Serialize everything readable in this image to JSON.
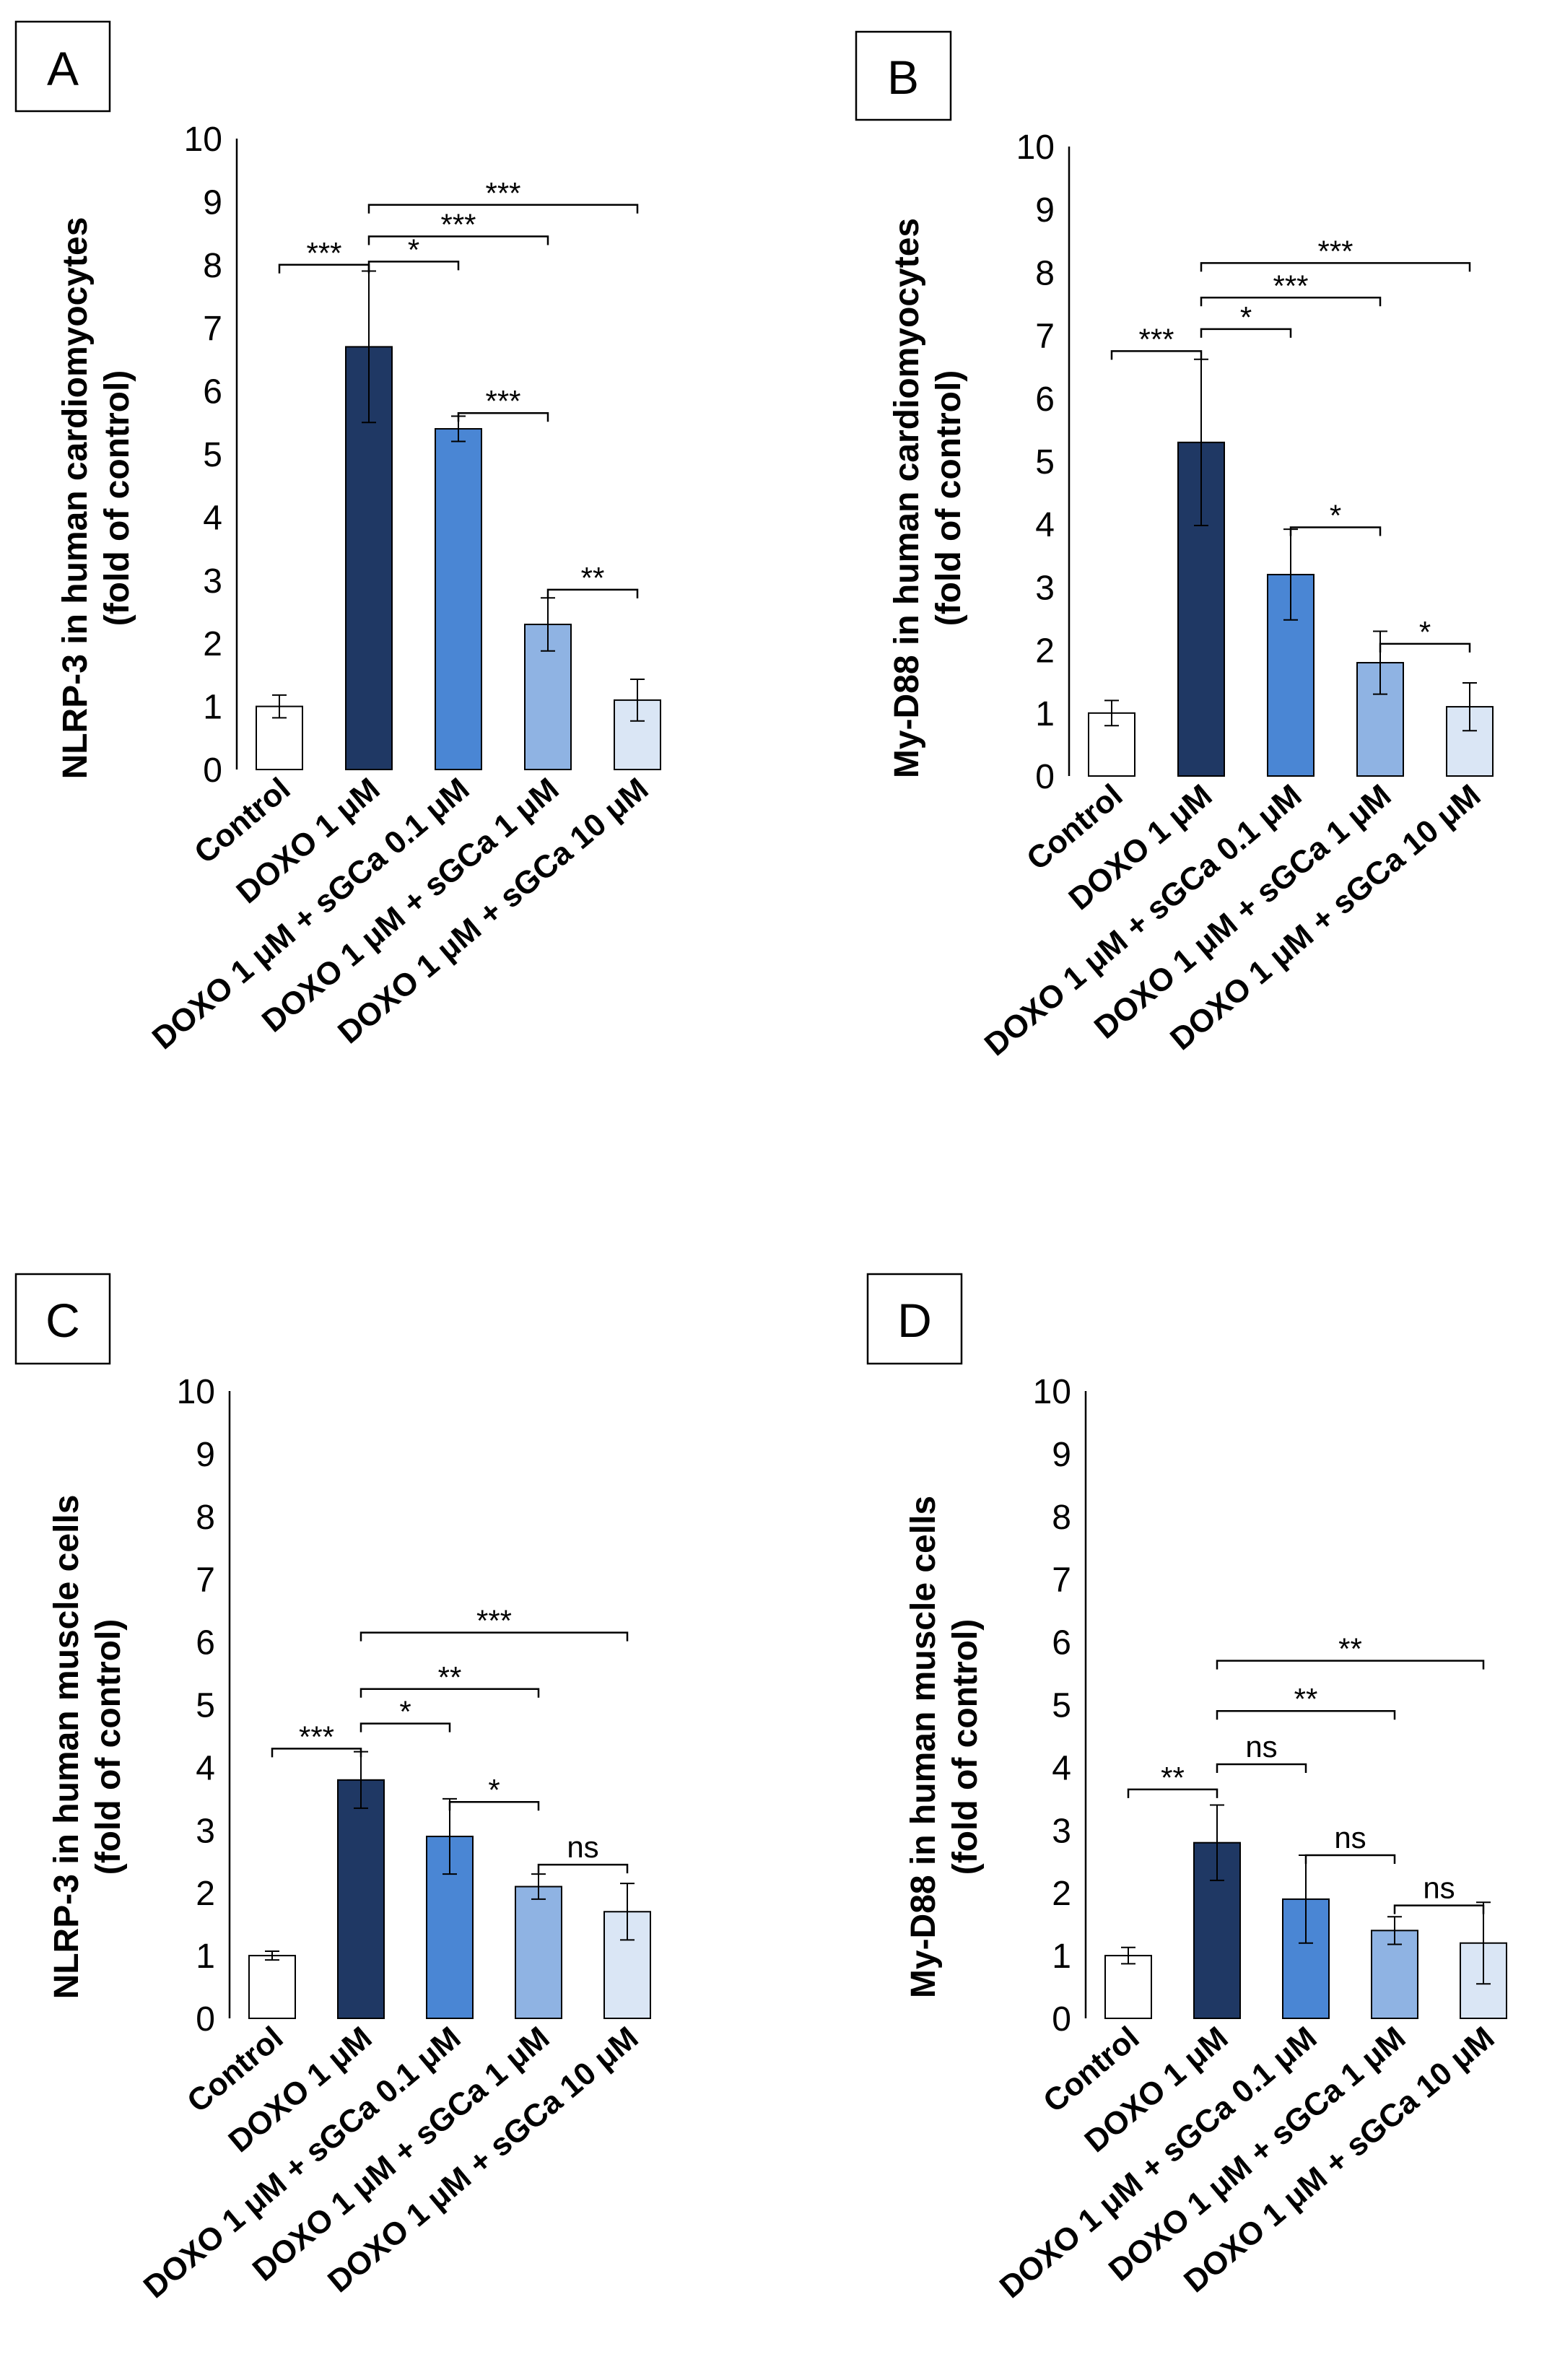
{
  "chart_data": [
    {
      "type": "bar",
      "panel": "A",
      "ylabel_line1": "NLRP-3 in human cardiomyocytes",
      "ylabel_line2": "(fold of control)",
      "ylim": [
        0,
        10
      ],
      "yticks": [
        "0",
        "1",
        "2",
        "3",
        "4",
        "5",
        "6",
        "7",
        "8",
        "9",
        "10"
      ],
      "categories": [
        "Control",
        "DOXO 1 μM",
        "DOXO 1 μM + sGCa 0.1 μM",
        "DOXO 1 μM + sGCa  1 μM",
        "DOXO 1 μM + sGCa 10 μM"
      ],
      "values": [
        1.0,
        6.7,
        5.4,
        2.3,
        1.1
      ],
      "errors": [
        0.18,
        1.2,
        0.2,
        0.42,
        0.33
      ],
      "colors": [
        "#ffffff",
        "#1f3864",
        "#4a86d4",
        "#8fb3e3",
        "#dae6f5"
      ],
      "comparisons": [
        {
          "from": 0,
          "to": 1,
          "label": "***",
          "level": 8.0
        },
        {
          "from": 1,
          "to": 2,
          "label": "*",
          "level": 8.05
        },
        {
          "from": 1,
          "to": 3,
          "label": "***",
          "level": 8.45
        },
        {
          "from": 1,
          "to": 4,
          "label": "***",
          "level": 8.95
        },
        {
          "from": 2,
          "to": 3,
          "label": "***",
          "level": 5.65
        },
        {
          "from": 3,
          "to": 4,
          "label": "**",
          "level": 2.85
        }
      ]
    },
    {
      "type": "bar",
      "panel": "B",
      "ylabel_line1": "My-D88 in human cardiomyocytes",
      "ylabel_line2": "(fold of control)",
      "ylim": [
        0,
        10
      ],
      "yticks": [
        "0",
        "1",
        "2",
        "3",
        "4",
        "5",
        "6",
        "7",
        "8",
        "9",
        "10"
      ],
      "categories": [
        "Control",
        "DOXO 1 μM",
        "DOXO 1 μM + sGCa 0.1 μM",
        "DOXO 1 μM + sGCa  1 μM",
        "DOXO 1 μM + sGCa 10 μM"
      ],
      "values": [
        1.0,
        5.3,
        3.2,
        1.8,
        1.1
      ],
      "errors": [
        0.2,
        1.32,
        0.72,
        0.5,
        0.38
      ],
      "colors": [
        "#ffffff",
        "#1f3864",
        "#4a86d4",
        "#8fb3e3",
        "#dae6f5"
      ],
      "comparisons": [
        {
          "from": 0,
          "to": 1,
          "label": "***",
          "level": 6.75
        },
        {
          "from": 1,
          "to": 2,
          "label": "*",
          "level": 7.1
        },
        {
          "from": 1,
          "to": 3,
          "label": "***",
          "level": 7.6
        },
        {
          "from": 1,
          "to": 4,
          "label": "***",
          "level": 8.15
        },
        {
          "from": 2,
          "to": 3,
          "label": "*",
          "level": 3.95
        },
        {
          "from": 3,
          "to": 4,
          "label": "*",
          "level": 2.1
        }
      ]
    },
    {
      "type": "bar",
      "panel": "C",
      "ylabel_line1": "NLRP-3 in human muscle cells",
      "ylabel_line2": "(fold of control)",
      "ylim": [
        0,
        10
      ],
      "yticks": [
        "0",
        "1",
        "2",
        "3",
        "4",
        "5",
        "6",
        "7",
        "8",
        "9",
        "10"
      ],
      "categories": [
        "Control",
        "DOXO 1 μM",
        "DOXO 1 μM + sGCa 0.1 μM",
        "DOXO 1 μM + sGCa  1 μM",
        "DOXO 1 μM + sGCa 10 μM"
      ],
      "values": [
        1.0,
        3.8,
        2.9,
        2.1,
        1.7
      ],
      "errors": [
        0.07,
        0.45,
        0.6,
        0.2,
        0.45
      ],
      "colors": [
        "#ffffff",
        "#1f3864",
        "#4a86d4",
        "#8fb3e3",
        "#dae6f5"
      ],
      "comparisons": [
        {
          "from": 0,
          "to": 1,
          "label": "***",
          "level": 4.3
        },
        {
          "from": 1,
          "to": 2,
          "label": "*",
          "level": 4.7
        },
        {
          "from": 1,
          "to": 3,
          "label": "**",
          "level": 5.25
        },
        {
          "from": 1,
          "to": 4,
          "label": "***",
          "level": 6.15
        },
        {
          "from": 2,
          "to": 3,
          "label": "*",
          "level": 3.45
        },
        {
          "from": 3,
          "to": 4,
          "label": "ns",
          "level": 2.45
        }
      ]
    },
    {
      "type": "bar",
      "panel": "D",
      "ylabel_line1": "My-D88 in human muscle cells",
      "ylabel_line2": "(fold of control)",
      "ylim": [
        0,
        10
      ],
      "yticks": [
        "0",
        "1",
        "2",
        "3",
        "4",
        "5",
        "6",
        "7",
        "8",
        "9",
        "10"
      ],
      "categories": [
        "Control",
        "DOXO 1 μM",
        "DOXO 1 μM + sGCa 0.1 μM",
        "DOXO 1 μM + sGCa  1 μM",
        "DOXO 1 μM + sGCa 10 μM"
      ],
      "values": [
        1.0,
        2.8,
        1.9,
        1.4,
        1.2
      ],
      "errors": [
        0.13,
        0.6,
        0.7,
        0.22,
        0.65
      ],
      "colors": [
        "#ffffff",
        "#1f3864",
        "#4a86d4",
        "#8fb3e3",
        "#dae6f5"
      ],
      "comparisons": [
        {
          "from": 0,
          "to": 1,
          "label": "**",
          "level": 3.65
        },
        {
          "from": 1,
          "to": 2,
          "label": "ns",
          "level": 4.05
        },
        {
          "from": 1,
          "to": 3,
          "label": "**",
          "level": 4.9
        },
        {
          "from": 1,
          "to": 4,
          "label": "**",
          "level": 5.7
        },
        {
          "from": 2,
          "to": 3,
          "label": "ns",
          "level": 2.6
        },
        {
          "from": 3,
          "to": 4,
          "label": "ns",
          "level": 1.8
        }
      ]
    }
  ]
}
